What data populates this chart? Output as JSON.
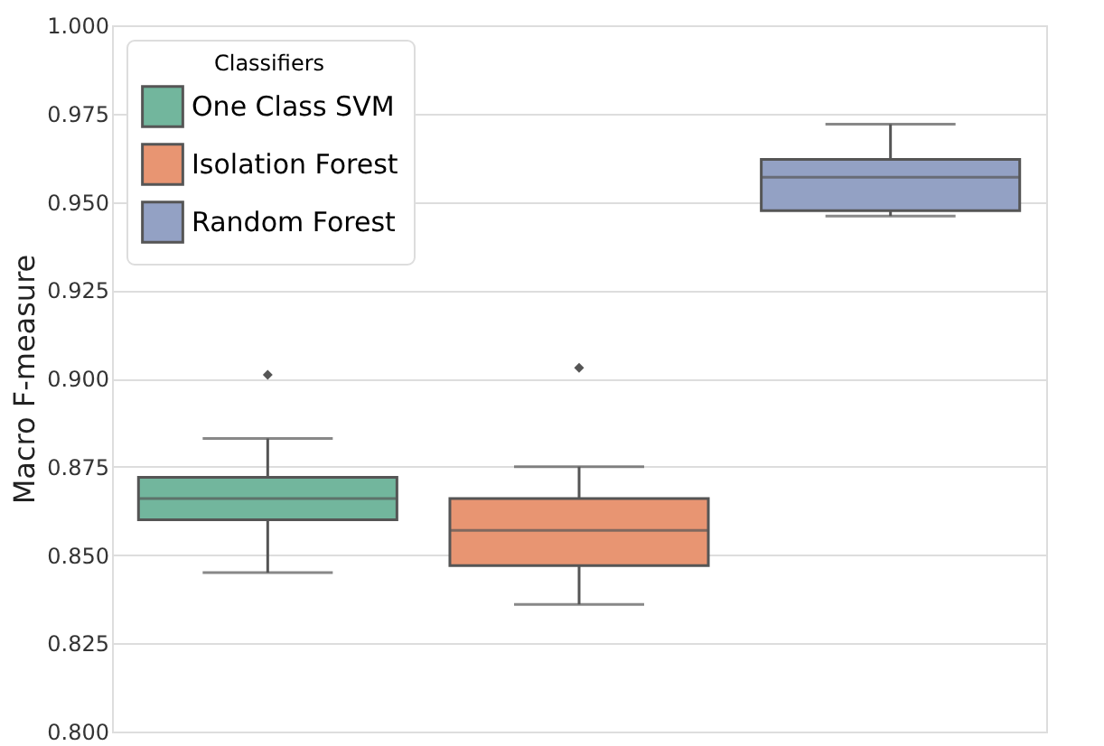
{
  "chart_data": {
    "type": "box",
    "ylabel": "Macro F-measure",
    "legend_title": "Classifiers",
    "categories": [
      null,
      null,
      null
    ],
    "series": [
      {
        "name": "One Class SVM",
        "color": "#72b69d",
        "boxes": [
          {
            "low": 0.845,
            "q1": 0.86,
            "median": 0.866,
            "q3": 0.872,
            "high": 0.883,
            "outliers": [
              0.901
            ]
          },
          null,
          null
        ]
      },
      {
        "name": "Isolation Forest",
        "color": "#e89572",
        "boxes": [
          null,
          {
            "low": 0.836,
            "q1": 0.847,
            "median": 0.857,
            "q3": 0.866,
            "high": 0.875,
            "outliers": [
              0.903
            ]
          },
          null
        ]
      },
      {
        "name": "Random Forest",
        "color": "#93a1c4",
        "boxes": [
          null,
          null,
          {
            "low": 0.946,
            "q1": 0.9475,
            "median": 0.957,
            "q3": 0.962,
            "high": 0.972
          }
        ]
      }
    ],
    "ylim": [
      0.8,
      1.0
    ],
    "yticks": [
      {
        "value": 0.8,
        "label": "0.800"
      },
      0.825,
      {
        "value": 0.85,
        "label": "0.850"
      },
      0.875,
      {
        "value": 0.9,
        "label": "0.900"
      },
      0.925,
      {
        "value": 0.95,
        "label": "0.950"
      },
      0.975,
      {
        "value": 1.0,
        "label": "1.000"
      }
    ],
    "grid": "y",
    "legend": "top left",
    "tick_labels": "y",
    "marker": "diamond"
  }
}
